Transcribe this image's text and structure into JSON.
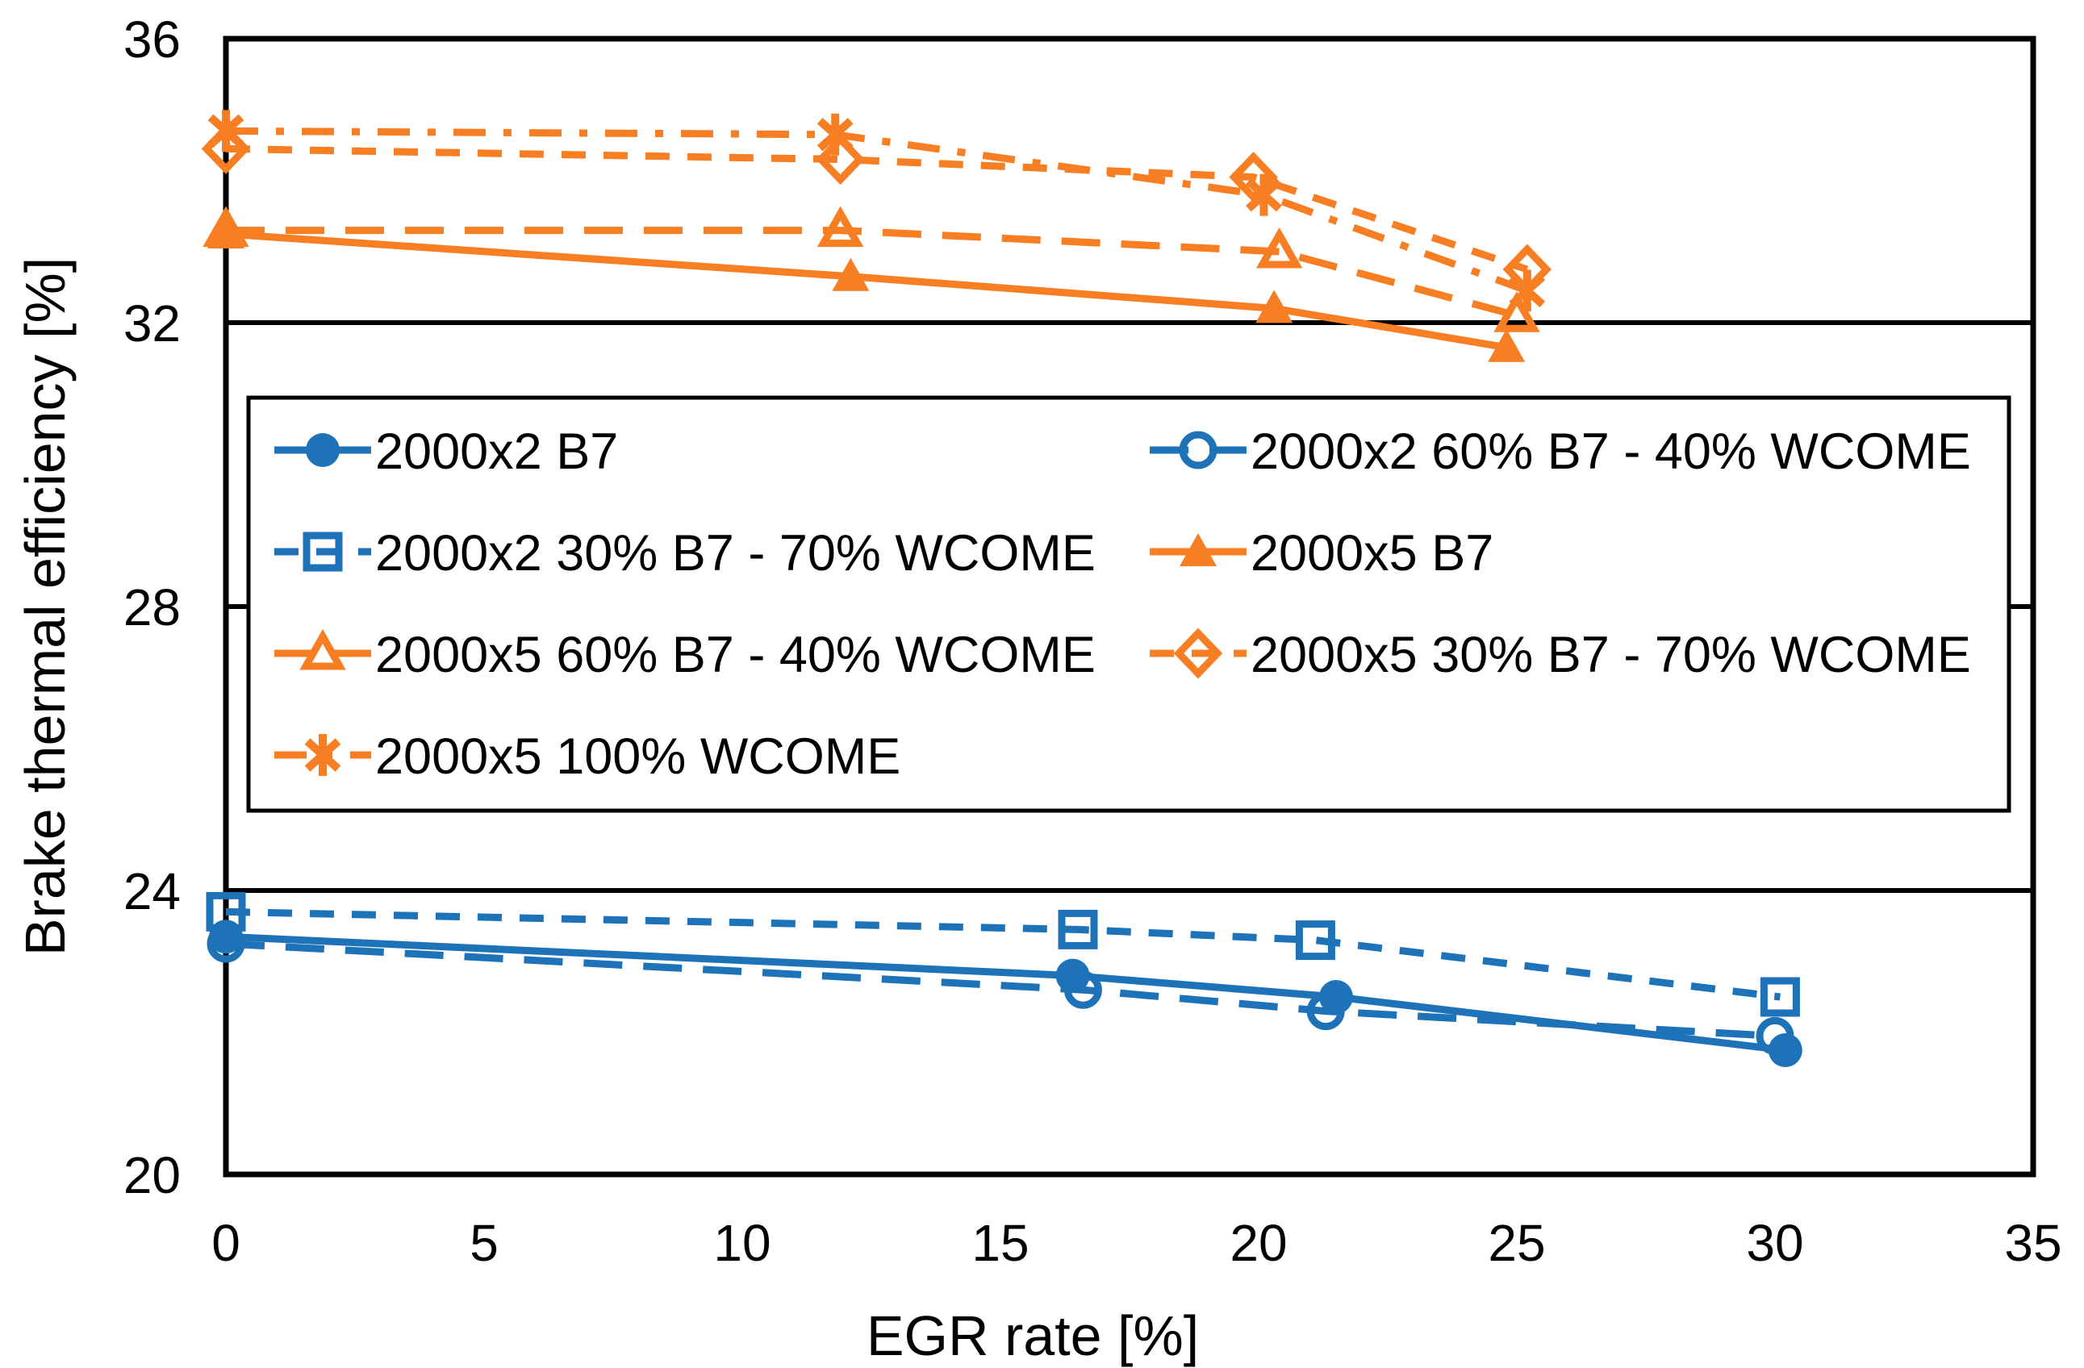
{
  "figure": {
    "background": "#FFFFFF",
    "frame_color": "#000000",
    "text_color": "#000000"
  },
  "chart_data": {
    "type": "line",
    "title": "",
    "xlabel": "EGR rate [%]",
    "ylabel": "Brake thermal efficiency [%]",
    "xlim": [
      0,
      35
    ],
    "ylim": [
      20,
      36
    ],
    "xticks": [
      0,
      5,
      10,
      15,
      20,
      25,
      30,
      35
    ],
    "yticks": [
      20,
      24,
      28,
      32,
      36
    ],
    "gridlines_y": [
      24,
      28,
      32
    ],
    "grid": "horizontal-only",
    "legend_position": "inside-top-left-boxed-two-columns",
    "colors": {
      "blue": "#1E73B8",
      "orange": "#F77E22"
    },
    "series": [
      {
        "name": "2000x2 B7",
        "color": "#1E73B8",
        "line": "solid",
        "marker": "circle-filled",
        "points": [
          [
            0,
            23.35
          ],
          [
            16.4,
            22.8
          ],
          [
            21.5,
            22.5
          ],
          [
            30.2,
            21.75
          ]
        ]
      },
      {
        "name": "2000x2 60% B7 - 40% WCOME",
        "color": "#1E73B8",
        "line": "dash-long",
        "marker": "circle-open",
        "points": [
          [
            0,
            23.25
          ],
          [
            16.6,
            22.6
          ],
          [
            21.3,
            22.3
          ],
          [
            30.0,
            21.95
          ]
        ]
      },
      {
        "name": "2000x2 30% B7 - 70% WCOME",
        "color": "#1E73B8",
        "line": "dash",
        "marker": "square-open",
        "points": [
          [
            0,
            23.7
          ],
          [
            16.5,
            23.45
          ],
          [
            21.1,
            23.3
          ],
          [
            30.1,
            22.5
          ]
        ]
      },
      {
        "name": "2000x5 B7",
        "color": "#F77E22",
        "line": "solid",
        "marker": "triangle-filled",
        "points": [
          [
            0,
            33.25
          ],
          [
            12.1,
            32.65
          ],
          [
            20.3,
            32.2
          ],
          [
            24.8,
            31.65
          ]
        ]
      },
      {
        "name": "2000x5 60% B7 - 40% WCOME",
        "color": "#F77E22",
        "line": "dash-long",
        "marker": "triangle-open",
        "points": [
          [
            0,
            33.3
          ],
          [
            11.9,
            33.3
          ],
          [
            20.4,
            33.0
          ],
          [
            25.0,
            32.1
          ]
        ]
      },
      {
        "name": "2000x5 30% B7 - 70% WCOME",
        "color": "#F77E22",
        "line": "dash",
        "marker": "diamond-open",
        "points": [
          [
            0,
            34.45
          ],
          [
            11.9,
            34.3
          ],
          [
            19.9,
            34.05
          ],
          [
            25.2,
            32.75
          ]
        ]
      },
      {
        "name": "2000x5 100% WCOME",
        "color": "#F77E22",
        "line": "dash-dot",
        "marker": "asterisk",
        "points": [
          [
            0,
            34.7
          ],
          [
            11.8,
            34.65
          ],
          [
            20.1,
            33.8
          ],
          [
            25.2,
            32.45
          ]
        ]
      }
    ],
    "legend_layout_rows": [
      [
        0,
        1
      ],
      [
        2,
        3
      ],
      [
        4,
        5
      ],
      [
        6
      ]
    ]
  }
}
